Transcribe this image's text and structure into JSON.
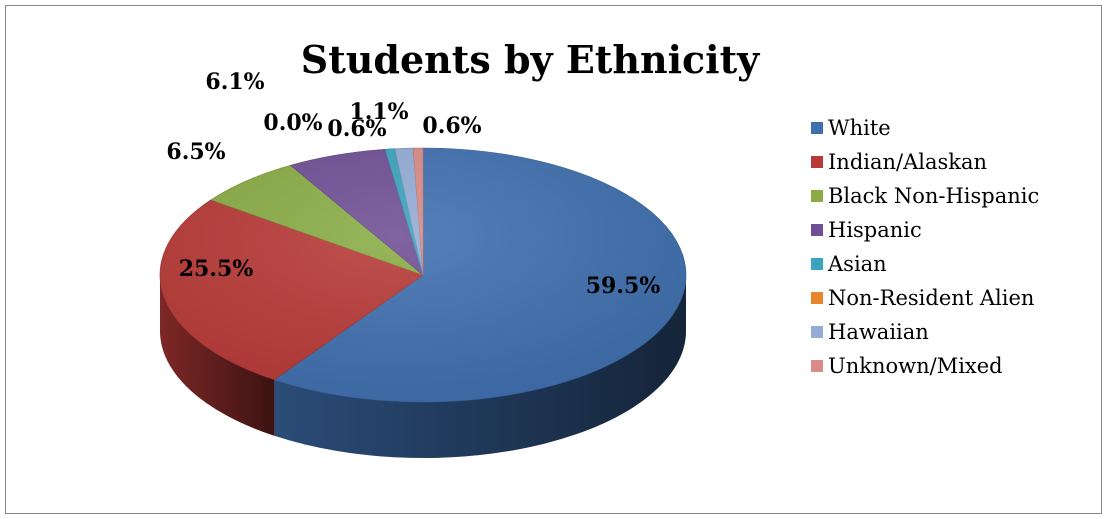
{
  "chart_data": {
    "type": "pie",
    "title": "Students by Ethnicity",
    "categories": [
      "White",
      "Indian/Alaskan",
      "Black Non-Hispanic",
      "Hispanic",
      "Asian",
      "Non-Resident Alien",
      "Hawaiian",
      "Unknown/Mixed"
    ],
    "values": [
      59.5,
      25.5,
      6.5,
      6.1,
      0.6,
      0.0,
      1.1,
      0.6
    ],
    "value_labels": [
      "59.5%",
      "25.5%",
      "6.5%",
      "6.1%",
      "0.6%",
      "0.0%",
      "1.1%",
      "0.6%"
    ],
    "colors": [
      "#3f6faf",
      "#b83a37",
      "#8aac45",
      "#6f4f95",
      "#3aa3bf",
      "#e8852a",
      "#94acd6",
      "#d98b87"
    ],
    "legend_position": "right",
    "style": "3d"
  }
}
